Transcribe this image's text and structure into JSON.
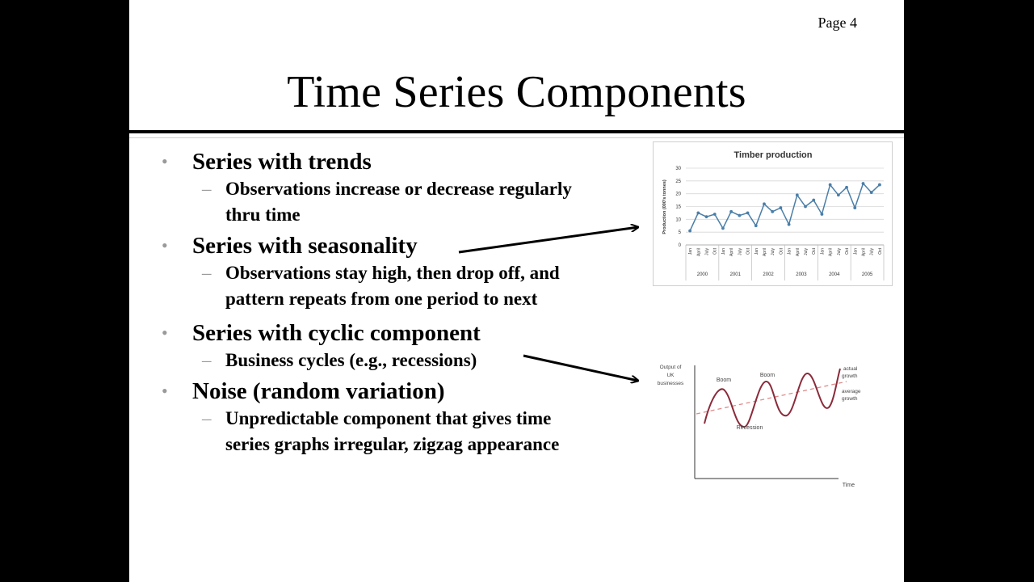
{
  "page": {
    "number_label": "Page 4"
  },
  "slide": {
    "title": "Time Series Components"
  },
  "bullets": [
    {
      "text": "Series with trends",
      "sub": [
        "Observations increase or decrease regularly",
        "thru time"
      ]
    },
    {
      "text": "Series with seasonality",
      "sub": [
        "Observations stay high, then drop off, and",
        "pattern repeats from one period to next"
      ]
    },
    {
      "text": "Series with cyclic component",
      "sub": [
        "Business cycles (e.g., recessions)"
      ]
    },
    {
      "text": "Noise (random variation)",
      "sub": [
        "Unpredictable component that gives time",
        "series graphs irregular, zigzag appearance"
      ]
    }
  ],
  "chart_data": [
    {
      "type": "line",
      "title": "Timber production",
      "ylabel": "Production (000's tonnes)",
      "ylim": [
        0,
        30
      ],
      "yticks": [
        0,
        5,
        10,
        15,
        20,
        25,
        30
      ],
      "quarter_labels": [
        "Jan",
        "April",
        "July",
        "Oct"
      ],
      "years": [
        "2000",
        "2001",
        "2002",
        "2003",
        "2004",
        "2005"
      ],
      "values": [
        5.5,
        12.5,
        11,
        12,
        6.5,
        13,
        11.5,
        12.5,
        7.5,
        16,
        13,
        14.5,
        8,
        19.5,
        15,
        17.5,
        12,
        23.5,
        19.5,
        22.5,
        14.5,
        24,
        20.5,
        23.5
      ],
      "grid": true,
      "color": "#4a7ea8"
    },
    {
      "type": "line",
      "ylabel": "Output of UK businesses",
      "xlabel": "Time",
      "labels": {
        "boom1": "Boom",
        "boom2": "Boom",
        "recession": "Recession",
        "actual": "actual growth",
        "average": "average growth"
      },
      "colors": {
        "actual": "#8b2a3a",
        "average": "#e08a8a"
      }
    }
  ]
}
